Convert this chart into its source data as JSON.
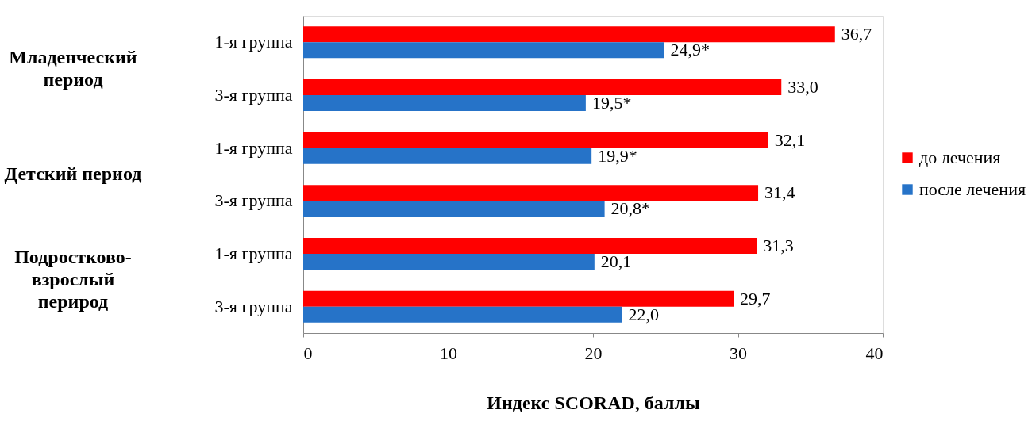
{
  "chart_data": {
    "type": "bar",
    "orientation": "horizontal",
    "categories": [
      "1-я группа",
      "3-я группа",
      "1-я группа",
      "3-я группа",
      "1-я группа",
      "3-я группа"
    ],
    "series": [
      {
        "name": "до лечения",
        "color": "#ff0000",
        "values": [
          36.7,
          33.0,
          32.1,
          31.4,
          31.3,
          29.7
        ],
        "value_labels": [
          "36,7",
          "33,0",
          "32,1",
          "31,4",
          "31,3",
          "29,7"
        ]
      },
      {
        "name": "после лечения",
        "color": "#2673c8",
        "values": [
          24.9,
          19.5,
          19.9,
          20.8,
          20.1,
          22.0
        ],
        "value_labels": [
          "24,9*",
          "19,5*",
          "19,9*",
          "20,8*",
          "20,1",
          "22,0"
        ]
      }
    ],
    "annotations": [
      "Младенческий\nпериод",
      "Детский период",
      "Подростково-\nвзрослый\nперирод"
    ],
    "xlabel": "Индекс SCORAD, баллы",
    "xlim": [
      0,
      40
    ],
    "xticks": [
      0,
      10,
      20,
      30,
      40
    ],
    "legend": "right",
    "grid": false
  }
}
